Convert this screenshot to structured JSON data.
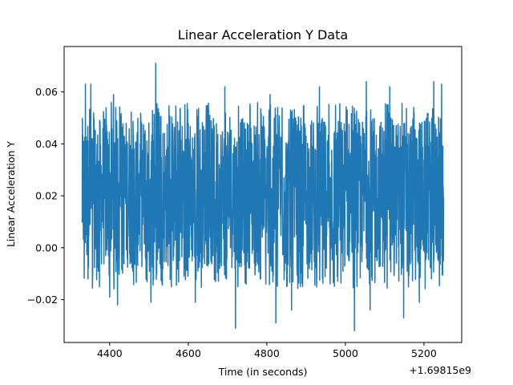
{
  "chart_data": {
    "type": "line",
    "title": "Linear Acceleration Y Data",
    "xlabel": "Time (in seconds)",
    "ylabel": "Linear Acceleration Y",
    "x_offset_label": "+1.69815e9",
    "xlim": [
      4284,
      5296
    ],
    "ylim": [
      -0.0365,
      0.0775
    ],
    "x_ticks": [
      4400,
      4600,
      4800,
      5000,
      5200
    ],
    "x_tick_labels": [
      "4400",
      "4600",
      "4800",
      "5000",
      "5200"
    ],
    "y_ticks": [
      -0.02,
      0.0,
      0.02,
      0.04,
      0.06
    ],
    "y_tick_labels": [
      "−0.02",
      "0.00",
      "0.02",
      "0.04",
      "0.06"
    ],
    "grid": false,
    "series": [
      {
        "name": "Linear Acceleration Y",
        "color": "#1f77b4",
        "x_start": 4330,
        "x_end": 5250,
        "sample_count": 1800,
        "band_low": -0.008,
        "band_high": 0.05,
        "peaks": [
          {
            "x": 4338,
            "y": 0.063
          },
          {
            "x": 4352,
            "y": 0.063
          },
          {
            "x": 4410,
            "y": 0.059
          },
          {
            "x": 4517,
            "y": 0.071
          },
          {
            "x": 4693,
            "y": 0.062
          },
          {
            "x": 4808,
            "y": 0.059
          },
          {
            "x": 4934,
            "y": 0.062
          },
          {
            "x": 5053,
            "y": 0.064
          },
          {
            "x": 5113,
            "y": 0.062
          },
          {
            "x": 5225,
            "y": 0.064
          },
          {
            "x": 5245,
            "y": 0.063
          }
        ],
        "troughs": [
          {
            "x": 4345,
            "y": -0.012
          },
          {
            "x": 4400,
            "y": -0.019
          },
          {
            "x": 4420,
            "y": -0.022
          },
          {
            "x": 4505,
            "y": -0.021
          },
          {
            "x": 4618,
            "y": -0.021
          },
          {
            "x": 4720,
            "y": -0.031
          },
          {
            "x": 4823,
            "y": -0.029
          },
          {
            "x": 4863,
            "y": -0.024
          },
          {
            "x": 5023,
            "y": -0.032
          },
          {
            "x": 5063,
            "y": -0.024
          },
          {
            "x": 5148,
            "y": -0.027
          },
          {
            "x": 5188,
            "y": -0.021
          }
        ]
      }
    ]
  }
}
